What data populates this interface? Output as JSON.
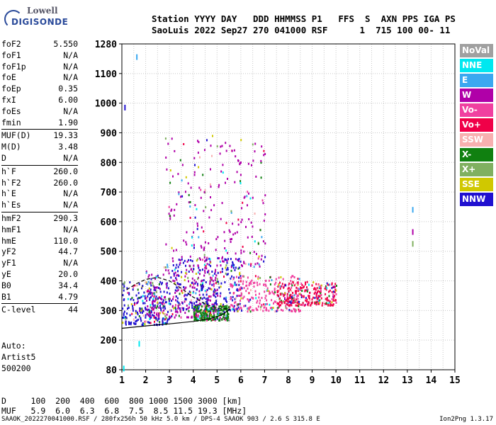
{
  "logo": {
    "line1": "Lowell",
    "line2": "DIGISONDE"
  },
  "header": {
    "row1": "Station YYYY DAY   DDD HHMMSS P1   FFS  S  AXN PPS IGA PS",
    "row2": "SaoLuis 2022 Sep27 270 041000 RSF      1  715 100 00- 11"
  },
  "params": [
    [
      {
        "k": "foF2",
        "v": "5.550"
      },
      {
        "k": "foF1",
        "v": "N/A"
      },
      {
        "k": "foF1p",
        "v": "N/A"
      },
      {
        "k": "foE",
        "v": "N/A"
      },
      {
        "k": "foEp",
        "v": "0.35"
      },
      {
        "k": "fxI",
        "v": "6.00"
      },
      {
        "k": "foEs",
        "v": "N/A"
      },
      {
        "k": "fmin",
        "v": "1.90"
      }
    ],
    [
      {
        "k": "MUF(D)",
        "v": "19.33"
      },
      {
        "k": "M(D)",
        "v": "3.48"
      },
      {
        "k": "D",
        "v": "N/A"
      }
    ],
    [
      {
        "k": "h`F",
        "v": "260.0"
      },
      {
        "k": "h`F2",
        "v": "260.0"
      },
      {
        "k": "h`E",
        "v": "N/A"
      },
      {
        "k": "h`Es",
        "v": "N/A"
      }
    ],
    [
      {
        "k": "hmF2",
        "v": "290.3"
      },
      {
        "k": "hmF1",
        "v": "N/A"
      },
      {
        "k": "hmE",
        "v": "110.0"
      },
      {
        "k": "yF2",
        "v": "44.7"
      },
      {
        "k": "yF1",
        "v": "N/A"
      },
      {
        "k": "yE",
        "v": "20.0"
      },
      {
        "k": "B0",
        "v": "34.4"
      },
      {
        "k": "B1",
        "v": "4.79"
      }
    ],
    [
      {
        "k": "C-level",
        "v": "44"
      }
    ]
  ],
  "autoscale": {
    "line1": "Auto:",
    "line2": "Artist5",
    "line3": "500200"
  },
  "legend": [
    {
      "label": "NoVal",
      "color": "#a0a0a0"
    },
    {
      "label": "NNE",
      "color": "#00e8f0"
    },
    {
      "label": "E",
      "color": "#3aa8f0"
    },
    {
      "label": "W",
      "color": "#b000a8"
    },
    {
      "label": "Vo-",
      "color": "#f040a0"
    },
    {
      "label": "Vo+",
      "color": "#f00048"
    },
    {
      "label": "SSW",
      "color": "#f8b0b0"
    },
    {
      "label": "X-",
      "color": "#108010"
    },
    {
      "label": "X+",
      "color": "#80b060"
    },
    {
      "label": "SSE",
      "color": "#d0c800"
    },
    {
      "label": "NNW",
      "color": "#2010d0"
    }
  ],
  "chart_data": {
    "type": "scatter",
    "xlabel": "",
    "ylabel": "",
    "x_range": [
      1,
      15
    ],
    "x_ticks": [
      1,
      2,
      3,
      4,
      5,
      6,
      7,
      8,
      9,
      10,
      11,
      12,
      13,
      14,
      15
    ],
    "y_range": [
      80,
      1280
    ],
    "y_ticks": [
      80,
      200,
      300,
      400,
      500,
      600,
      700,
      800,
      900,
      1000,
      1100,
      1280
    ],
    "grid": true,
    "traces": {
      "profile_solid": [
        [
          1.0,
          240
        ],
        [
          2.0,
          248
        ],
        [
          3.0,
          255
        ],
        [
          4.0,
          263
        ],
        [
          4.7,
          272
        ],
        [
          5.2,
          285
        ],
        [
          5.55,
          305
        ]
      ],
      "profile_dashed": [
        [
          1.2,
          370
        ],
        [
          1.6,
          390
        ],
        [
          2.0,
          405
        ],
        [
          2.5,
          412
        ],
        [
          3.0,
          400
        ],
        [
          3.5,
          375
        ],
        [
          4.0,
          345
        ],
        [
          4.5,
          322
        ],
        [
          5.0,
          308
        ],
        [
          5.55,
          305
        ]
      ]
    },
    "echo_clusters": [
      {
        "x": [
          1.0,
          3.0
        ],
        "y": [
          255,
          400
        ],
        "series": "NNW"
      },
      {
        "x": [
          2.0,
          5.0
        ],
        "y": [
          280,
          450
        ],
        "series": "W"
      },
      {
        "x": [
          3.0,
          6.0
        ],
        "y": [
          300,
          480
        ],
        "series": "NNW"
      },
      {
        "x": [
          5.5,
          8.5
        ],
        "y": [
          300,
          420
        ],
        "series": "Vo-"
      },
      {
        "x": [
          7.5,
          10.0
        ],
        "y": [
          320,
          400
        ],
        "series": "Vo+"
      },
      {
        "x": [
          2.8,
          7.0
        ],
        "y": [
          450,
          900
        ],
        "series": "W"
      },
      {
        "x": [
          4.0,
          5.5
        ],
        "y": [
          270,
          320
        ],
        "series": "X-"
      }
    ],
    "isolated_points": [
      {
        "x": 1.6,
        "y": 1200,
        "series": "E"
      },
      {
        "x": 1.1,
        "y": 985,
        "series": "NNW"
      },
      {
        "x": 1.7,
        "y": 185,
        "series": "NNE"
      },
      {
        "x": 1.05,
        "y": 85,
        "series": "NNE"
      },
      {
        "x": 13.2,
        "y": 640,
        "series": "E"
      },
      {
        "x": 13.2,
        "y": 565,
        "series": "W"
      },
      {
        "x": 13.2,
        "y": 525,
        "series": "X+"
      }
    ]
  },
  "bottom": {
    "d_row": "D     100  200  400  600  800 1000 1500 3000 [km]",
    "muf_row": "MUF   5.9  6.0  6.3  6.8  7.5  8.5 11.5 19.3 [MHz]"
  },
  "footer": {
    "left": "SAAOK_2022270041000.RSF / 280fx256h 50 kHz 5.0 km / DPS-4 SAAOK 903 / 2.6 S 315.8 E",
    "right": "Ion2Png 1.3.17"
  }
}
